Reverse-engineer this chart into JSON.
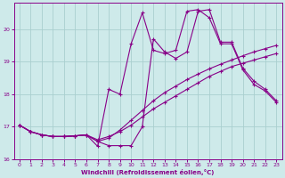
{
  "xlabel": "Windchill (Refroidissement éolien,°C)",
  "bg_color": "#ceeaea",
  "grid_color": "#aacfcf",
  "line_color": "#880088",
  "xlim": [
    -0.5,
    23.5
  ],
  "ylim": [
    16,
    20.8
  ],
  "yticks": [
    16,
    17,
    18,
    19,
    20
  ],
  "xticks": [
    0,
    1,
    2,
    3,
    4,
    5,
    6,
    7,
    8,
    9,
    10,
    11,
    12,
    13,
    14,
    15,
    16,
    17,
    18,
    19,
    20,
    21,
    22,
    23
  ],
  "smooth1_x": [
    0,
    1,
    2,
    3,
    4,
    5,
    6,
    7,
    8,
    9,
    10,
    11,
    12,
    13,
    14,
    15,
    16,
    17,
    18,
    19,
    20,
    21,
    22,
    23
  ],
  "smooth1_y": [
    17.05,
    16.85,
    16.75,
    16.7,
    16.7,
    16.72,
    16.75,
    16.6,
    16.7,
    16.85,
    17.05,
    17.3,
    17.55,
    17.75,
    17.95,
    18.15,
    18.35,
    18.55,
    18.7,
    18.85,
    18.95,
    19.05,
    19.15,
    19.25
  ],
  "smooth2_x": [
    0,
    1,
    2,
    3,
    4,
    5,
    6,
    7,
    8,
    9,
    10,
    11,
    12,
    13,
    14,
    15,
    16,
    17,
    18,
    19,
    20,
    21,
    22,
    23
  ],
  "smooth2_y": [
    17.05,
    16.85,
    16.75,
    16.7,
    16.7,
    16.72,
    16.75,
    16.55,
    16.65,
    16.9,
    17.2,
    17.5,
    17.8,
    18.05,
    18.25,
    18.45,
    18.62,
    18.78,
    18.92,
    19.05,
    19.18,
    19.3,
    19.4,
    19.5
  ],
  "jagged1_x": [
    0,
    1,
    2,
    3,
    4,
    5,
    6,
    7,
    8,
    9,
    10,
    11,
    12,
    13,
    14,
    15,
    16,
    17,
    18,
    19,
    20,
    21,
    22,
    23
  ],
  "jagged1_y": [
    17.05,
    16.85,
    16.75,
    16.7,
    16.7,
    16.72,
    16.75,
    16.55,
    16.42,
    16.42,
    16.42,
    17.0,
    19.7,
    19.3,
    19.1,
    19.3,
    20.55,
    20.6,
    19.6,
    19.6,
    18.8,
    18.4,
    18.15,
    17.8
  ],
  "jagged2_x": [
    0,
    1,
    2,
    3,
    4,
    5,
    6,
    7,
    8,
    9,
    10,
    11,
    12,
    13,
    14,
    15,
    16,
    17,
    18,
    19,
    20,
    21,
    22,
    23
  ],
  "jagged2_y": [
    17.05,
    16.85,
    16.75,
    16.7,
    16.7,
    16.72,
    16.75,
    16.4,
    18.15,
    18.0,
    19.55,
    20.5,
    19.35,
    19.25,
    19.35,
    20.55,
    20.6,
    20.35,
    19.55,
    19.55,
    18.75,
    18.3,
    18.1,
    17.75
  ]
}
